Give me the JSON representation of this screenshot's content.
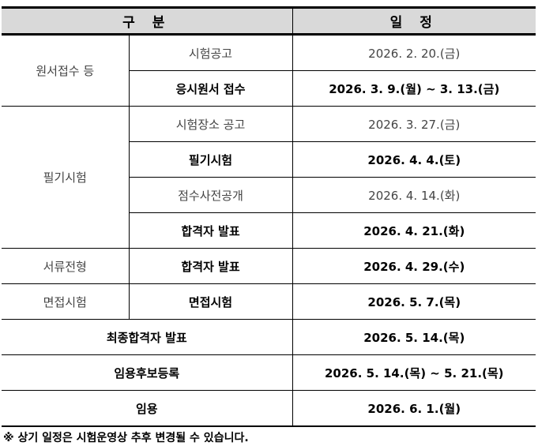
{
  "header": {
    "category": "구 분",
    "schedule": "일 정"
  },
  "rows": [
    {
      "group": "원서접수 등",
      "item": "시험공고",
      "date": "2026. 2. 20.(금)"
    },
    {
      "item": "응시원서 접수",
      "date": "2026. 3. 9.(월) ~ 3. 13.(금)"
    },
    {
      "group": "필기시험",
      "item": "시험장소 공고",
      "date": "2026. 3. 27.(금)"
    },
    {
      "item": "필기시험",
      "date": "2026. 4. 4.(토)"
    },
    {
      "item": "점수사전공개",
      "date": "2026. 4. 14.(화)"
    },
    {
      "item": "합격자 발표",
      "date": "2026. 4. 21.(화)"
    },
    {
      "group": "서류전형",
      "item": "합격자 발표",
      "date": "2026. 4. 29.(수)"
    },
    {
      "group": "면접시험",
      "item": "면접시험",
      "date": "2026. 5. 7.(목)"
    },
    {
      "item": "최종합격자 발표",
      "date": "2026. 5. 14.(목)"
    },
    {
      "item": "임용후보등록",
      "date": "2026. 5. 14.(목) ~ 5. 21.(목)"
    },
    {
      "item": "임용",
      "date": "2026. 6. 1.(월)"
    }
  ],
  "footnote": "※ 상기 일정은 시험운영상 추후 변경될 수 있습니다."
}
